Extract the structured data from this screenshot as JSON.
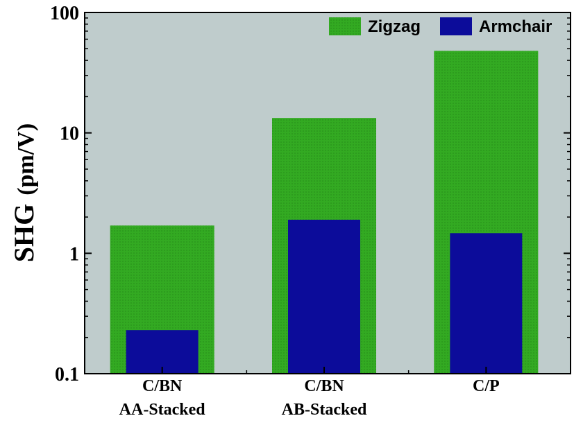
{
  "chart_data": {
    "type": "bar",
    "categories": [
      [
        "C/BN",
        "AA-Stacked"
      ],
      [
        "C/BN",
        "AB-Stacked"
      ],
      [
        "C/P"
      ]
    ],
    "series": [
      {
        "name": "Zigzag",
        "values": [
          1.7,
          13.3,
          48
        ],
        "color": "#33aa22"
      },
      {
        "name": "Armchair",
        "values": [
          0.23,
          1.9,
          1.47
        ],
        "color": "#0c0c9a"
      }
    ],
    "ylabel": {
      "main": "SHG",
      "unit": "(pm/V)"
    },
    "yscale": "log",
    "ylim": [
      0.1,
      100
    ],
    "yticks": [
      0.1,
      1,
      10,
      100
    ],
    "ytick_labels": [
      "0.1",
      "1",
      "10",
      "100"
    ],
    "background": "#bfcccc",
    "legend": "top-right",
    "grid": false
  }
}
